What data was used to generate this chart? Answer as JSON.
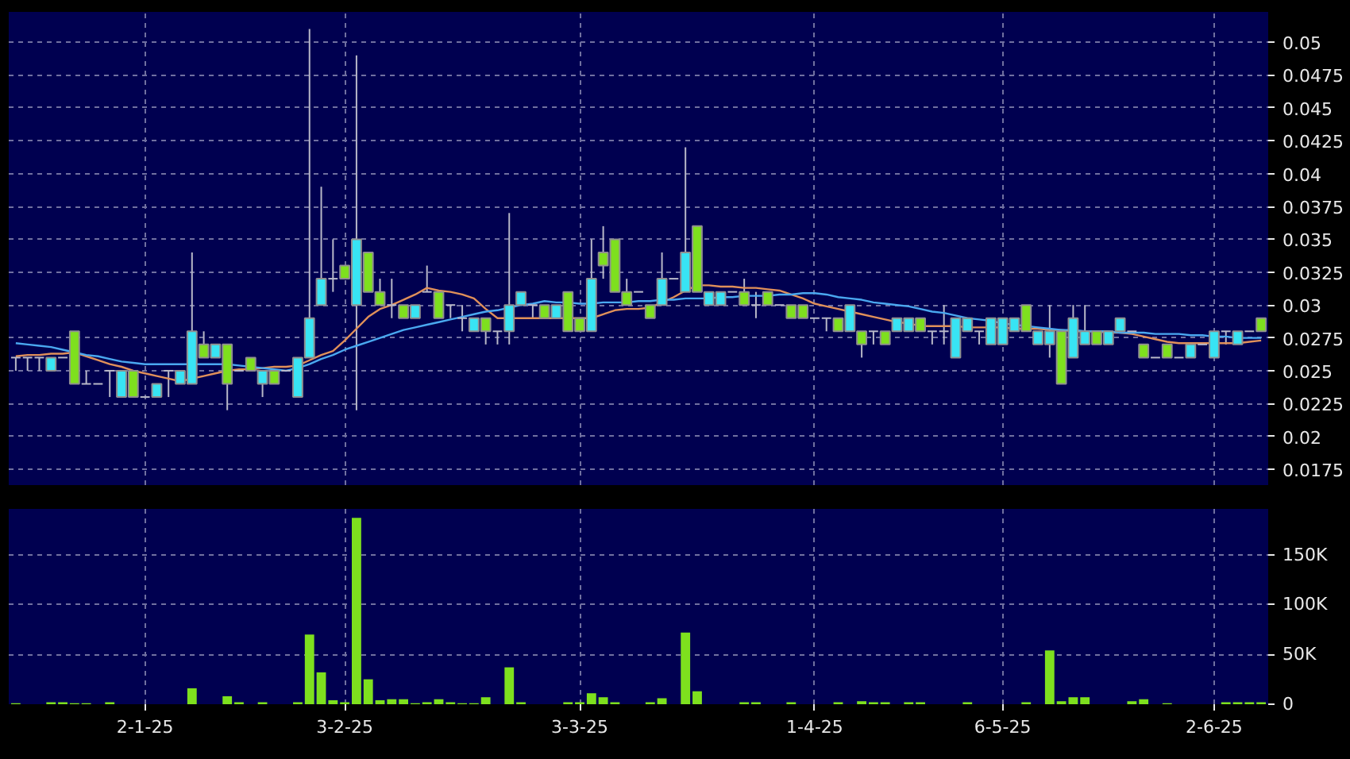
{
  "chart_data": [
    {
      "type": "candlestick",
      "categories": [
        null,
        null,
        null,
        null,
        null,
        null,
        null,
        null,
        null,
        null,
        null,
        null,
        null,
        null,
        null,
        null,
        null,
        null,
        null,
        null,
        null,
        null,
        null,
        null,
        null,
        null,
        null,
        null,
        null,
        null,
        null,
        null,
        null,
        null,
        null,
        null,
        null,
        null,
        null,
        null,
        null,
        null,
        null,
        null,
        null,
        null,
        null,
        null,
        null,
        null,
        null,
        null,
        null,
        null,
        null,
        null,
        null,
        null,
        null,
        null,
        null,
        null,
        null,
        null,
        null,
        null,
        null,
        null,
        null,
        null,
        null,
        null,
        null,
        null,
        null,
        null,
        null,
        null,
        null,
        null,
        null,
        null,
        null,
        null,
        null,
        null,
        null,
        null,
        null,
        null,
        null,
        null,
        null,
        null,
        null,
        null,
        null,
        null,
        null,
        null,
        null,
        null,
        null,
        null,
        null,
        null,
        null
      ],
      "colors": [
        "#b8b8c8",
        "#b8b8c8",
        "#b8b8c8",
        "#38e4f4",
        "#b8b8c8",
        "#7ee01e",
        "#b8b8c8",
        "#b8b8c8",
        "#b8b8c8",
        "#38e4f4",
        "#7ee01e",
        "#b8b8c8",
        "#38e4f4",
        "#b8b8c8",
        "#38e4f4",
        "#38e4f4",
        "#7ee01e",
        "#38e4f4",
        "#7ee01e",
        "#b8b8c8",
        "#7ee01e",
        "#38e4f4",
        "#7ee01e",
        "#b8b8c8",
        "#38e4f4",
        "#38e4f4",
        "#38e4f4",
        "#b8b8c8",
        "#7ee01e",
        "#38e4f4",
        "#7ee01e",
        "#7ee01e",
        "#b8b8c8",
        "#7ee01e",
        "#38e4f4",
        "#b8b8c8",
        "#7ee01e",
        "#b8b8c8",
        "#b8b8c8",
        "#38e4f4",
        "#7ee01e",
        "#b8b8c8",
        "#38e4f4",
        "#38e4f4",
        "#b8b8c8",
        "#7ee01e",
        "#38e4f4",
        "#7ee01e",
        "#7ee01e",
        "#38e4f4",
        "#7ee01e",
        "#7ee01e",
        "#7ee01e",
        "#b8b8c8",
        "#7ee01e",
        "#38e4f4",
        "#b8b8c8",
        "#38e4f4",
        "#7ee01e",
        "#38e4f4",
        "#38e4f4",
        "#b8b8c8",
        "#7ee01e",
        "#b8b8c8",
        "#7ee01e",
        "#b8b8c8",
        "#7ee01e",
        "#7ee01e",
        "#b8b8c8",
        "#b8b8c8",
        "#7ee01e",
        "#38e4f4",
        "#7ee01e",
        "#b8b8c8",
        "#7ee01e",
        "#38e4f4",
        "#38e4f4",
        "#7ee01e",
        "#b8b8c8",
        "#b8b8c8",
        "#38e4f4",
        "#38e4f4",
        "#b8b8c8",
        "#38e4f4",
        "#38e4f4",
        "#38e4f4",
        "#7ee01e",
        "#38e4f4",
        "#38e4f4",
        "#7ee01e",
        "#38e4f4",
        "#38e4f4",
        "#7ee01e",
        "#38e4f4",
        "#38e4f4",
        "#b8b8c8",
        "#7ee01e",
        "#b8b8c8",
        "#7ee01e",
        "#b8b8c8",
        "#38e4f4",
        "#b8b8c8",
        "#38e4f4",
        "#b8b8c8",
        "#38e4f4",
        "#b8b8c8",
        "#7ee01e"
      ],
      "ohlc": [
        [
          0.026,
          0.026,
          0.025,
          0.026
        ],
        [
          0.026,
          0.026,
          0.025,
          0.026
        ],
        [
          0.026,
          0.026,
          0.025,
          0.026
        ],
        [
          0.025,
          0.026,
          0.025,
          0.026
        ],
        [
          0.026,
          0.026,
          0.026,
          0.026
        ],
        [
          0.028,
          0.028,
          0.024,
          0.024
        ],
        [
          0.024,
          0.025,
          0.024,
          0.024
        ],
        [
          0.024,
          0.024,
          0.024,
          0.024
        ],
        [
          0.025,
          0.025,
          0.023,
          0.025
        ],
        [
          0.023,
          0.025,
          0.023,
          0.025
        ],
        [
          0.025,
          0.025,
          0.023,
          0.023
        ],
        [
          0.023,
          0.023,
          0.023,
          0.023
        ],
        [
          0.023,
          0.024,
          0.023,
          0.024
        ],
        [
          0.025,
          0.025,
          0.023,
          0.025
        ],
        [
          0.024,
          0.025,
          0.024,
          0.025
        ],
        [
          0.024,
          0.034,
          0.024,
          0.028
        ],
        [
          0.027,
          0.028,
          0.026,
          0.026
        ],
        [
          0.026,
          0.027,
          0.026,
          0.027
        ],
        [
          0.027,
          0.027,
          0.022,
          0.024
        ],
        [
          0.025,
          0.025,
          0.025,
          0.025
        ],
        [
          0.026,
          0.026,
          0.025,
          0.025
        ],
        [
          0.024,
          0.025,
          0.023,
          0.025
        ],
        [
          0.025,
          0.025,
          0.024,
          0.024
        ],
        [
          0.025,
          0.025,
          0.025,
          0.025
        ],
        [
          0.023,
          0.026,
          0.023,
          0.026
        ],
        [
          0.026,
          0.051,
          0.026,
          0.029
        ],
        [
          0.03,
          0.039,
          0.03,
          0.032
        ],
        [
          0.032,
          0.035,
          0.031,
          0.032
        ],
        [
          0.033,
          0.033,
          0.032,
          0.032
        ],
        [
          0.03,
          0.049,
          0.022,
          0.035
        ],
        [
          0.034,
          0.034,
          0.031,
          0.031
        ],
        [
          0.031,
          0.032,
          0.03,
          0.03
        ],
        [
          0.03,
          0.032,
          0.029,
          0.03
        ],
        [
          0.03,
          0.03,
          0.029,
          0.029
        ],
        [
          0.029,
          0.03,
          0.029,
          0.03
        ],
        [
          0.031,
          0.033,
          0.031,
          0.031
        ],
        [
          0.031,
          0.031,
          0.029,
          0.029
        ],
        [
          0.03,
          0.03,
          0.029,
          0.03
        ],
        [
          0.029,
          0.03,
          0.028,
          0.029
        ],
        [
          0.028,
          0.029,
          0.028,
          0.029
        ],
        [
          0.029,
          0.029,
          0.027,
          0.028
        ],
        [
          0.028,
          0.028,
          0.027,
          0.028
        ],
        [
          0.028,
          0.037,
          0.027,
          0.03
        ],
        [
          0.03,
          0.031,
          0.03,
          0.031
        ],
        [
          0.03,
          0.03,
          0.029,
          0.03
        ],
        [
          0.03,
          0.03,
          0.029,
          0.029
        ],
        [
          0.029,
          0.03,
          0.029,
          0.03
        ],
        [
          0.031,
          0.031,
          0.028,
          0.028
        ],
        [
          0.029,
          0.029,
          0.028,
          0.028
        ],
        [
          0.028,
          0.035,
          0.028,
          0.032
        ],
        [
          0.034,
          0.036,
          0.032,
          0.033
        ],
        [
          0.035,
          0.035,
          0.031,
          0.031
        ],
        [
          0.031,
          0.032,
          0.03,
          0.03
        ],
        [
          0.031,
          0.031,
          0.031,
          0.031
        ],
        [
          0.03,
          0.03,
          0.029,
          0.029
        ],
        [
          0.03,
          0.034,
          0.03,
          0.032
        ],
        [
          0.032,
          0.032,
          0.032,
          0.032
        ],
        [
          0.031,
          0.042,
          0.031,
          0.034
        ],
        [
          0.036,
          0.036,
          0.031,
          0.031
        ],
        [
          0.03,
          0.031,
          0.03,
          0.031
        ],
        [
          0.03,
          0.031,
          0.03,
          0.031
        ],
        [
          0.031,
          0.031,
          0.031,
          0.031
        ],
        [
          0.031,
          0.032,
          0.03,
          0.03
        ],
        [
          0.03,
          0.031,
          0.029,
          0.03
        ],
        [
          0.031,
          0.031,
          0.03,
          0.03
        ],
        [
          0.03,
          0.03,
          0.03,
          0.03
        ],
        [
          0.03,
          0.03,
          0.029,
          0.029
        ],
        [
          0.03,
          0.03,
          0.029,
          0.029
        ],
        [
          0.029,
          0.029,
          0.029,
          0.029
        ],
        [
          0.029,
          0.029,
          0.028,
          0.029
        ],
        [
          0.029,
          0.029,
          0.028,
          0.028
        ],
        [
          0.028,
          0.03,
          0.028,
          0.03
        ],
        [
          0.028,
          0.028,
          0.026,
          0.027
        ],
        [
          0.028,
          0.028,
          0.027,
          0.028
        ],
        [
          0.028,
          0.028,
          0.027,
          0.027
        ],
        [
          0.028,
          0.029,
          0.028,
          0.029
        ],
        [
          0.028,
          0.029,
          0.028,
          0.029
        ],
        [
          0.029,
          0.029,
          0.028,
          0.028
        ],
        [
          0.028,
          0.028,
          0.027,
          0.028
        ],
        [
          0.028,
          0.03,
          0.027,
          0.028
        ],
        [
          0.026,
          0.029,
          0.026,
          0.029
        ],
        [
          0.028,
          0.029,
          0.028,
          0.029
        ],
        [
          0.028,
          0.028,
          0.027,
          0.028
        ],
        [
          0.027,
          0.029,
          0.027,
          0.029
        ],
        [
          0.027,
          0.029,
          0.027,
          0.029
        ],
        [
          0.028,
          0.029,
          0.028,
          0.029
        ],
        [
          0.03,
          0.03,
          0.028,
          0.028
        ],
        [
          0.027,
          0.028,
          0.027,
          0.028
        ],
        [
          0.027,
          0.03,
          0.026,
          0.028
        ],
        [
          0.028,
          0.028,
          0.024,
          0.024
        ],
        [
          0.026,
          0.03,
          0.026,
          0.029
        ],
        [
          0.027,
          0.03,
          0.027,
          0.028
        ],
        [
          0.028,
          0.028,
          0.027,
          0.027
        ],
        [
          0.027,
          0.028,
          0.027,
          0.028
        ],
        [
          0.028,
          0.029,
          0.028,
          0.029
        ],
        [
          0.028,
          0.028,
          0.028,
          0.028
        ],
        [
          0.027,
          0.027,
          0.026,
          0.026
        ],
        [
          0.026,
          0.026,
          0.026,
          0.026
        ],
        [
          0.027,
          0.027,
          0.026,
          0.026
        ],
        [
          0.026,
          0.026,
          0.026,
          0.026
        ],
        [
          0.026,
          0.027,
          0.026,
          0.027
        ],
        [
          0.027,
          0.027,
          0.027,
          0.027
        ],
        [
          0.026,
          0.028,
          0.026,
          0.028
        ],
        [
          0.028,
          0.028,
          0.027,
          0.028
        ],
        [
          0.027,
          0.028,
          0.027,
          0.028
        ],
        [
          0.028,
          0.028,
          0.028,
          0.028
        ],
        [
          0.029,
          0.029,
          0.028,
          0.028
        ]
      ],
      "series": [
        {
          "type": "line",
          "color": "#e0905a",
          "values": [
            0.0261,
            0.0262,
            0.0262,
            0.0263,
            0.0263,
            0.0264,
            0.0261,
            0.0258,
            0.0255,
            0.0253,
            0.025,
            0.0248,
            0.0246,
            0.0244,
            0.0242,
            0.0244,
            0.0246,
            0.0248,
            0.025,
            0.0251,
            0.0251,
            0.0252,
            0.0253,
            0.0253,
            0.0254,
            0.0258,
            0.0262,
            0.0265,
            0.0273,
            0.0282,
            0.0291,
            0.0297,
            0.03,
            0.0304,
            0.0308,
            0.0313,
            0.0311,
            0.031,
            0.0308,
            0.0305,
            0.0297,
            0.029,
            0.029,
            0.029,
            0.029,
            0.029,
            0.029,
            0.029,
            0.029,
            0.029,
            0.0293,
            0.0296,
            0.0297,
            0.0297,
            0.0298,
            0.0302,
            0.0306,
            0.0311,
            0.0315,
            0.0315,
            0.0314,
            0.0314,
            0.0313,
            0.0313,
            0.0312,
            0.0311,
            0.0308,
            0.0305,
            0.0301,
            0.0299,
            0.0297,
            0.0295,
            0.0293,
            0.0291,
            0.0289,
            0.0287,
            0.0286,
            0.0284,
            0.0284,
            0.0284,
            0.0284,
            0.0283,
            0.0283,
            0.0283,
            0.0283,
            0.0282,
            0.0282,
            0.0282,
            0.0281,
            0.0281,
            0.028,
            0.028,
            0.028,
            0.0279,
            0.0279,
            0.0278,
            0.0276,
            0.0274,
            0.0272,
            0.0271,
            0.0271,
            0.0271,
            0.0271,
            0.0271,
            0.0271,
            0.0272,
            0.0273
          ]
        },
        {
          "type": "line",
          "color": "#4aa8f0",
          "values": [
            0.0271,
            0.027,
            0.0269,
            0.0268,
            0.0266,
            0.0264,
            0.0262,
            0.0261,
            0.0259,
            0.0257,
            0.0256,
            0.0255,
            0.0255,
            0.0255,
            0.0255,
            0.0255,
            0.0255,
            0.0255,
            0.0255,
            0.0254,
            0.0253,
            0.0252,
            0.0251,
            0.025,
            0.0252,
            0.0255,
            0.0259,
            0.0262,
            0.0266,
            0.0269,
            0.0272,
            0.0275,
            0.0278,
            0.0281,
            0.0283,
            0.0285,
            0.0287,
            0.0289,
            0.0291,
            0.0293,
            0.0295,
            0.0296,
            0.0298,
            0.03,
            0.0301,
            0.0303,
            0.0302,
            0.0302,
            0.0301,
            0.0301,
            0.0302,
            0.0302,
            0.0302,
            0.0303,
            0.0303,
            0.0304,
            0.0304,
            0.0305,
            0.0305,
            0.0305,
            0.0306,
            0.0306,
            0.0307,
            0.0307,
            0.0307,
            0.0308,
            0.0308,
            0.0309,
            0.0309,
            0.0308,
            0.0306,
            0.0305,
            0.0304,
            0.0302,
            0.0301,
            0.03,
            0.0299,
            0.0297,
            0.0295,
            0.0294,
            0.0292,
            0.029,
            0.0289,
            0.0288,
            0.0286,
            0.0285,
            0.0284,
            0.0283,
            0.0282,
            0.0281,
            0.0281,
            0.028,
            0.028,
            0.028,
            0.0279,
            0.0279,
            0.0279,
            0.0278,
            0.0278,
            0.0278,
            0.0277,
            0.0277,
            0.0276,
            0.0276,
            0.0275,
            0.0275,
            0.0275
          ]
        }
      ],
      "ylim": [
        0.0163,
        0.0523
      ],
      "yticks": [
        0.0175,
        0.02,
        0.0225,
        0.025,
        0.0275,
        0.03,
        0.0325,
        0.035,
        0.0375,
        0.04,
        0.0425,
        0.045,
        0.0475,
        0.05
      ],
      "grid": true,
      "tick_labels": "y"
    },
    {
      "type": "bar",
      "categories": [
        null,
        null,
        null,
        null,
        null,
        null,
        null,
        null,
        null,
        null,
        null,
        "2-1-25",
        null,
        null,
        null,
        null,
        null,
        null,
        null,
        null,
        null,
        null,
        null,
        null,
        null,
        null,
        null,
        null,
        "3-2-25",
        null,
        null,
        null,
        null,
        null,
        null,
        null,
        null,
        null,
        null,
        null,
        null,
        null,
        null,
        null,
        null,
        null,
        null,
        null,
        "3-3-25",
        null,
        null,
        null,
        null,
        null,
        null,
        null,
        null,
        null,
        null,
        null,
        null,
        null,
        null,
        null,
        null,
        null,
        null,
        null,
        "1-4-25",
        null,
        null,
        null,
        null,
        null,
        null,
        null,
        null,
        null,
        null,
        null,
        null,
        null,
        null,
        null,
        "6-5-25",
        null,
        null,
        null,
        null,
        null,
        null,
        null,
        null,
        null,
        null,
        null,
        null,
        null,
        null,
        null,
        null,
        null,
        "2-6-25",
        null,
        null,
        null,
        null
      ],
      "color": "#7ee01e",
      "values": [
        1000,
        0,
        0,
        2000,
        2000,
        1000,
        1000,
        0,
        2000,
        0,
        0,
        0,
        0,
        0,
        0,
        16000,
        0,
        0,
        8000,
        2000,
        0,
        2000,
        0,
        0,
        2000,
        70000,
        32000,
        4000,
        2000,
        187000,
        25000,
        4000,
        5000,
        5000,
        1000,
        2000,
        5000,
        2000,
        1000,
        1000,
        7000,
        0,
        37000,
        2000,
        0,
        0,
        0,
        2000,
        2000,
        11000,
        7000,
        2000,
        0,
        0,
        2000,
        6000,
        0,
        72000,
        13000,
        0,
        0,
        0,
        2000,
        2000,
        0,
        0,
        2000,
        0,
        0,
        0,
        2000,
        0,
        3000,
        2000,
        2000,
        0,
        2000,
        2000,
        0,
        0,
        0,
        2000,
        0,
        0,
        0,
        0,
        2000,
        0,
        54000,
        3000,
        7000,
        7000,
        0,
        0,
        0,
        3000,
        5000,
        0,
        1000,
        0,
        0,
        0,
        0,
        2000,
        2000,
        2000,
        2000
      ],
      "ylim": [
        0,
        196000
      ],
      "yticks": [
        0,
        {
          "value": 50000,
          "label": "50K"
        },
        {
          "value": 100000,
          "label": "100K"
        },
        {
          "value": 150000,
          "label": "150K"
        }
      ],
      "grid": true
    }
  ]
}
